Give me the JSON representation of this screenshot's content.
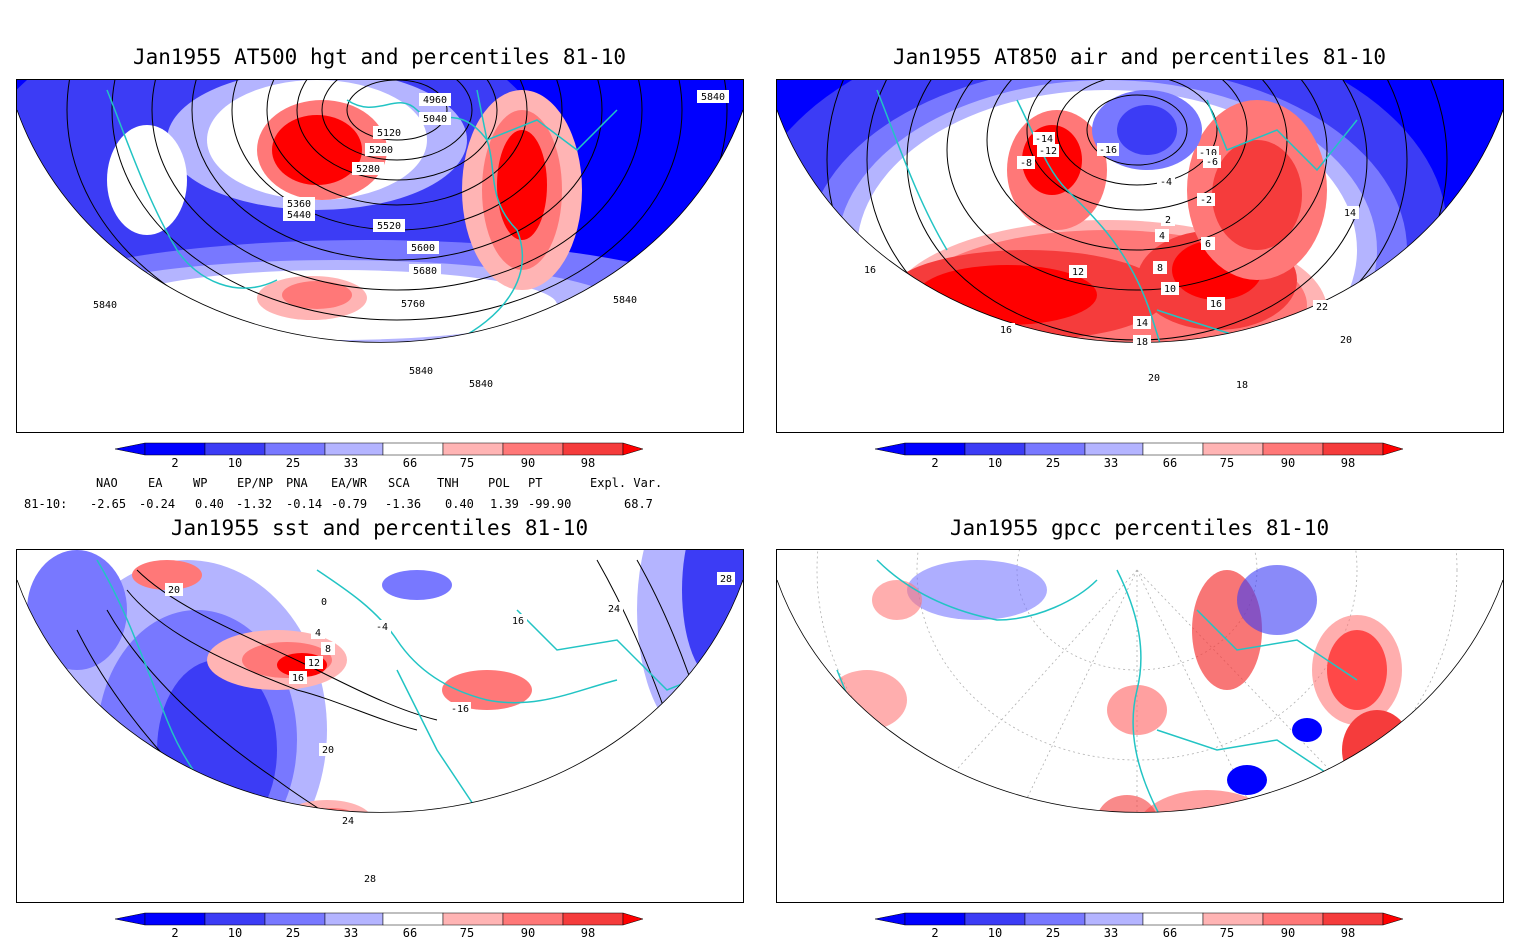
{
  "panels": [
    {
      "id": "p1",
      "title": "Jan1955 AT500 hgt and percentiles 81-10",
      "contours": [
        "4960",
        "5040",
        "5120",
        "5200",
        "5280",
        "5360",
        "5440",
        "5520",
        "5600",
        "5680",
        "5760",
        "5840",
        "5840",
        "5840",
        "5840",
        "5840"
      ]
    },
    {
      "id": "p2",
      "title": "Jan1955 AT850 air and percentiles 81-10",
      "contours": [
        "-14",
        "-12",
        "-16",
        "-8",
        "-10",
        "-6",
        "-4",
        "-2",
        "2",
        "4",
        "6",
        "8",
        "10",
        "12",
        "14",
        "16",
        "18",
        "20",
        "22",
        "16",
        "14",
        "16",
        "18",
        "20"
      ]
    },
    {
      "id": "p3",
      "title": "Jan1955 sst and percentiles 81-10",
      "contours": [
        "20",
        "24",
        "28",
        "16",
        "12",
        "8",
        "4",
        "0",
        "-4",
        "-16",
        "16",
        "20",
        "24",
        "28"
      ]
    },
    {
      "id": "p4",
      "title": "Jan1955 gpcc percentiles 81-10",
      "contours": []
    }
  ],
  "colorbar": {
    "labels": [
      "2",
      "10",
      "25",
      "33",
      "66",
      "75",
      "90",
      "98"
    ],
    "colors": {
      "b_dark": "#0000ff",
      "b_mid": "#3c3cf5",
      "b_light": "#7878ff",
      "b_pale": "#b4b4ff",
      "white": "#ffffff",
      "r_pale": "#ffb4b4",
      "r_light": "#ff7878",
      "r_mid": "#f53c3c",
      "r_dark": "#ff0000"
    }
  },
  "indices": {
    "headers": [
      "NAO",
      "EA",
      "WP",
      "EP/NP",
      "PNA",
      "EA/WR",
      "SCA",
      "TNH",
      "POL",
      "PT",
      "Expl. Var."
    ],
    "row_label": "81-10:",
    "values": [
      "-2.65",
      "-0.24",
      "0.40",
      "-1.32",
      "-0.14",
      "-0.79",
      "-1.36",
      "0.40",
      "1.39",
      "-99.90",
      "68.7"
    ]
  },
  "map_colors": {
    "coast": "#22c4c4",
    "contour": "#000000",
    "grid": "#b0b0b0"
  }
}
